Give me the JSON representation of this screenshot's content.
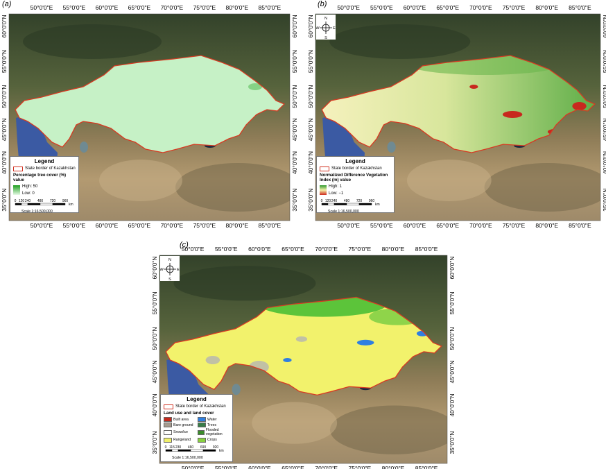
{
  "graticule": {
    "lon": [
      "50°0'0\"E",
      "55°0'0\"E",
      "60°0'0\"E",
      "65°0'0\"E",
      "70°0'0\"E",
      "75°0'0\"E",
      "80°0'0\"E",
      "85°0'0\"E"
    ],
    "lat": [
      "60°0'0\"N",
      "55°0'0\"N",
      "50°0'0\"N",
      "45°0'0\"N",
      "40°0'0\"N",
      "35°0'0\"N"
    ]
  },
  "panels": [
    {
      "label": "(a)",
      "legend": {
        "title": "Legend",
        "border": "State border of Kazakhstan",
        "layer": "Percentage tree cover (%) value",
        "high": "High: 50",
        "low": "Low: 0",
        "ramp": [
          "#1e9e1e",
          "#e6fae6"
        ],
        "scale_bar": [
          0,
          120,
          240,
          480,
          720,
          960
        ],
        "unit": "km",
        "scale": "Scale 1:16,500,000"
      }
    },
    {
      "label": "(b)",
      "compass": [
        "N",
        "E",
        "S",
        "W"
      ],
      "legend": {
        "title": "Legend",
        "border": "State border of Kazakhstan",
        "layer": "Normalized Difference Vegetation Index (m) value",
        "high": "High: 1",
        "low": "Low: −1",
        "ramp": [
          "#2f9a2f",
          "#f3f0a8",
          "#d02a1e"
        ],
        "scale_bar": [
          0,
          120,
          240,
          480,
          720,
          960
        ],
        "unit": "km",
        "scale": "Scale 1:16,500,000"
      }
    },
    {
      "label": "(c)",
      "compass": [
        "N",
        "E",
        "S",
        "W"
      ],
      "legend": {
        "title": "Legend",
        "border": "State border of Kazakhstan",
        "layer": "Land use and land cover",
        "classes": [
          {
            "name": "Built area",
            "color": "#c4281b"
          },
          {
            "name": "Water",
            "color": "#2f7fe0"
          },
          {
            "name": "Bare ground",
            "color": "#a59b8f"
          },
          {
            "name": "Trees",
            "color": "#397d49"
          },
          {
            "name": "Snow/ice",
            "color": "#ffffff"
          },
          {
            "name": "Flooded vegetation",
            "color": "#3c8c2c"
          },
          {
            "name": "Rangeland",
            "color": "#f0f06a"
          },
          {
            "name": "Crops",
            "color": "#88d040"
          }
        ],
        "scale_bar": [
          0,
          115,
          230,
          460,
          690,
          920
        ],
        "unit": "km",
        "scale": "Scale 1:16,500,000"
      }
    }
  ]
}
